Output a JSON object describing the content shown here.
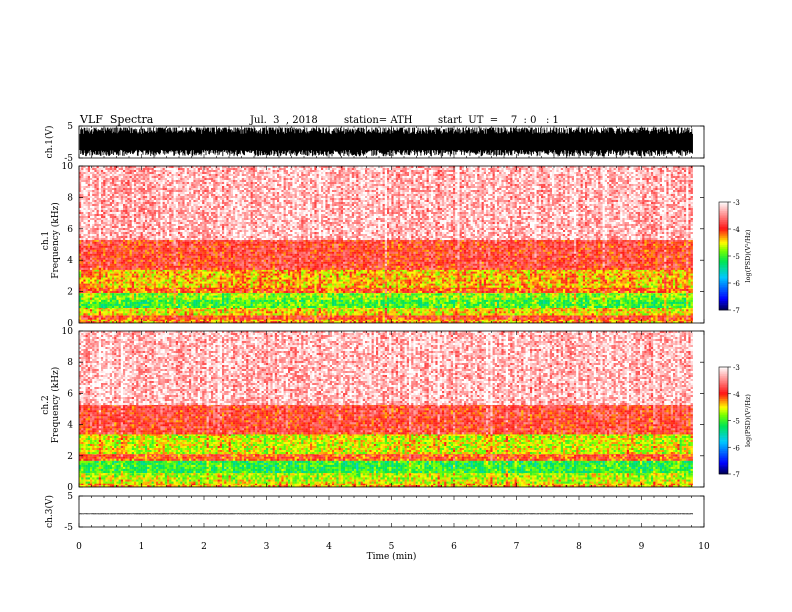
{
  "header": {
    "title": "VLF  Spectra",
    "date": "Jul.  3  , 2018",
    "station": "station= ATH",
    "start": "start  UT  =    7  : 0   : 1"
  },
  "chart_data": [
    {
      "type": "line",
      "panel": "ch1-waveform",
      "ylabel": "ch.1(V)",
      "ylim": [
        -5,
        5
      ],
      "yticks": [
        "5",
        "-5"
      ],
      "xlim": [
        0,
        10
      ],
      "data_extent_min": [
        0,
        9.82
      ],
      "amplitude_range_v": [
        -4.5,
        4.5
      ]
    },
    {
      "type": "heatmap",
      "panel": "ch1-spectrogram",
      "ylabel_top": "ch.1",
      "ylabel": "Frequency  (kHz)",
      "ylim": [
        0,
        10
      ],
      "yticks": [
        "0",
        "2",
        "4",
        "6",
        "8",
        "10"
      ],
      "xlim": [
        0,
        10
      ],
      "data_extent_min": [
        0,
        9.82
      ],
      "bands": [
        {
          "f": [
            0.0,
            0.25
          ],
          "level": -4.3
        },
        {
          "f": [
            0.25,
            0.6
          ],
          "level": -4.0
        },
        {
          "f": [
            0.6,
            1.0
          ],
          "level": -4.5
        },
        {
          "f": [
            1.0,
            1.6
          ],
          "level": -5.0
        },
        {
          "f": [
            1.6,
            2.0
          ],
          "level": -4.8
        },
        {
          "f": [
            2.0,
            2.3
          ],
          "level": -4.1
        },
        {
          "f": [
            2.3,
            3.4
          ],
          "level": -4.4
        },
        {
          "f": [
            3.4,
            5.3
          ],
          "level": -3.9
        },
        {
          "f": [
            5.3,
            10.0
          ],
          "level": -3.3
        }
      ],
      "colorbar": {
        "label": "log(PSD)(V²/Hz)",
        "range": [
          -7,
          -3
        ],
        "ticks": [
          "-3",
          "-4",
          "-5",
          "-6",
          "-7"
        ]
      }
    },
    {
      "type": "heatmap",
      "panel": "ch2-spectrogram",
      "ylabel_top": "ch.2",
      "ylabel": "Frequency  (kHz)",
      "ylim": [
        0,
        10
      ],
      "yticks": [
        "0",
        "2",
        "4",
        "6",
        "8",
        "10"
      ],
      "xlim": [
        0,
        10
      ],
      "data_extent_min": [
        0,
        9.82
      ],
      "bands": [
        {
          "f": [
            0.0,
            0.25
          ],
          "level": -4.4
        },
        {
          "f": [
            0.25,
            0.6
          ],
          "level": -4.6
        },
        {
          "f": [
            0.6,
            1.0
          ],
          "level": -4.7
        },
        {
          "f": [
            1.0,
            1.8
          ],
          "level": -5.1
        },
        {
          "f": [
            1.8,
            2.2
          ],
          "level": -4.1
        },
        {
          "f": [
            2.2,
            3.4
          ],
          "level": -4.6
        },
        {
          "f": [
            3.4,
            5.3
          ],
          "level": -3.9
        },
        {
          "f": [
            5.3,
            10.0
          ],
          "level": -3.3
        }
      ],
      "colorbar": {
        "label": "log(PSD)(V²/Hz)",
        "range": [
          -7,
          -3
        ],
        "ticks": [
          "-3",
          "-4",
          "-5",
          "-6",
          "-7"
        ]
      }
    },
    {
      "type": "line",
      "panel": "ch3-waveform",
      "ylabel": "ch.3(V)",
      "ylim": [
        -5,
        5
      ],
      "yticks": [
        "5",
        "-5"
      ],
      "xlim": [
        0,
        10
      ],
      "data_extent_min": [
        0,
        9.82
      ],
      "amplitude_range_v": [
        -0.9,
        -0.6
      ],
      "xlabel": "Time  (min)",
      "xticks": [
        "0",
        "1",
        "2",
        "3",
        "4",
        "5",
        "6",
        "7",
        "8",
        "9",
        "10"
      ]
    }
  ]
}
